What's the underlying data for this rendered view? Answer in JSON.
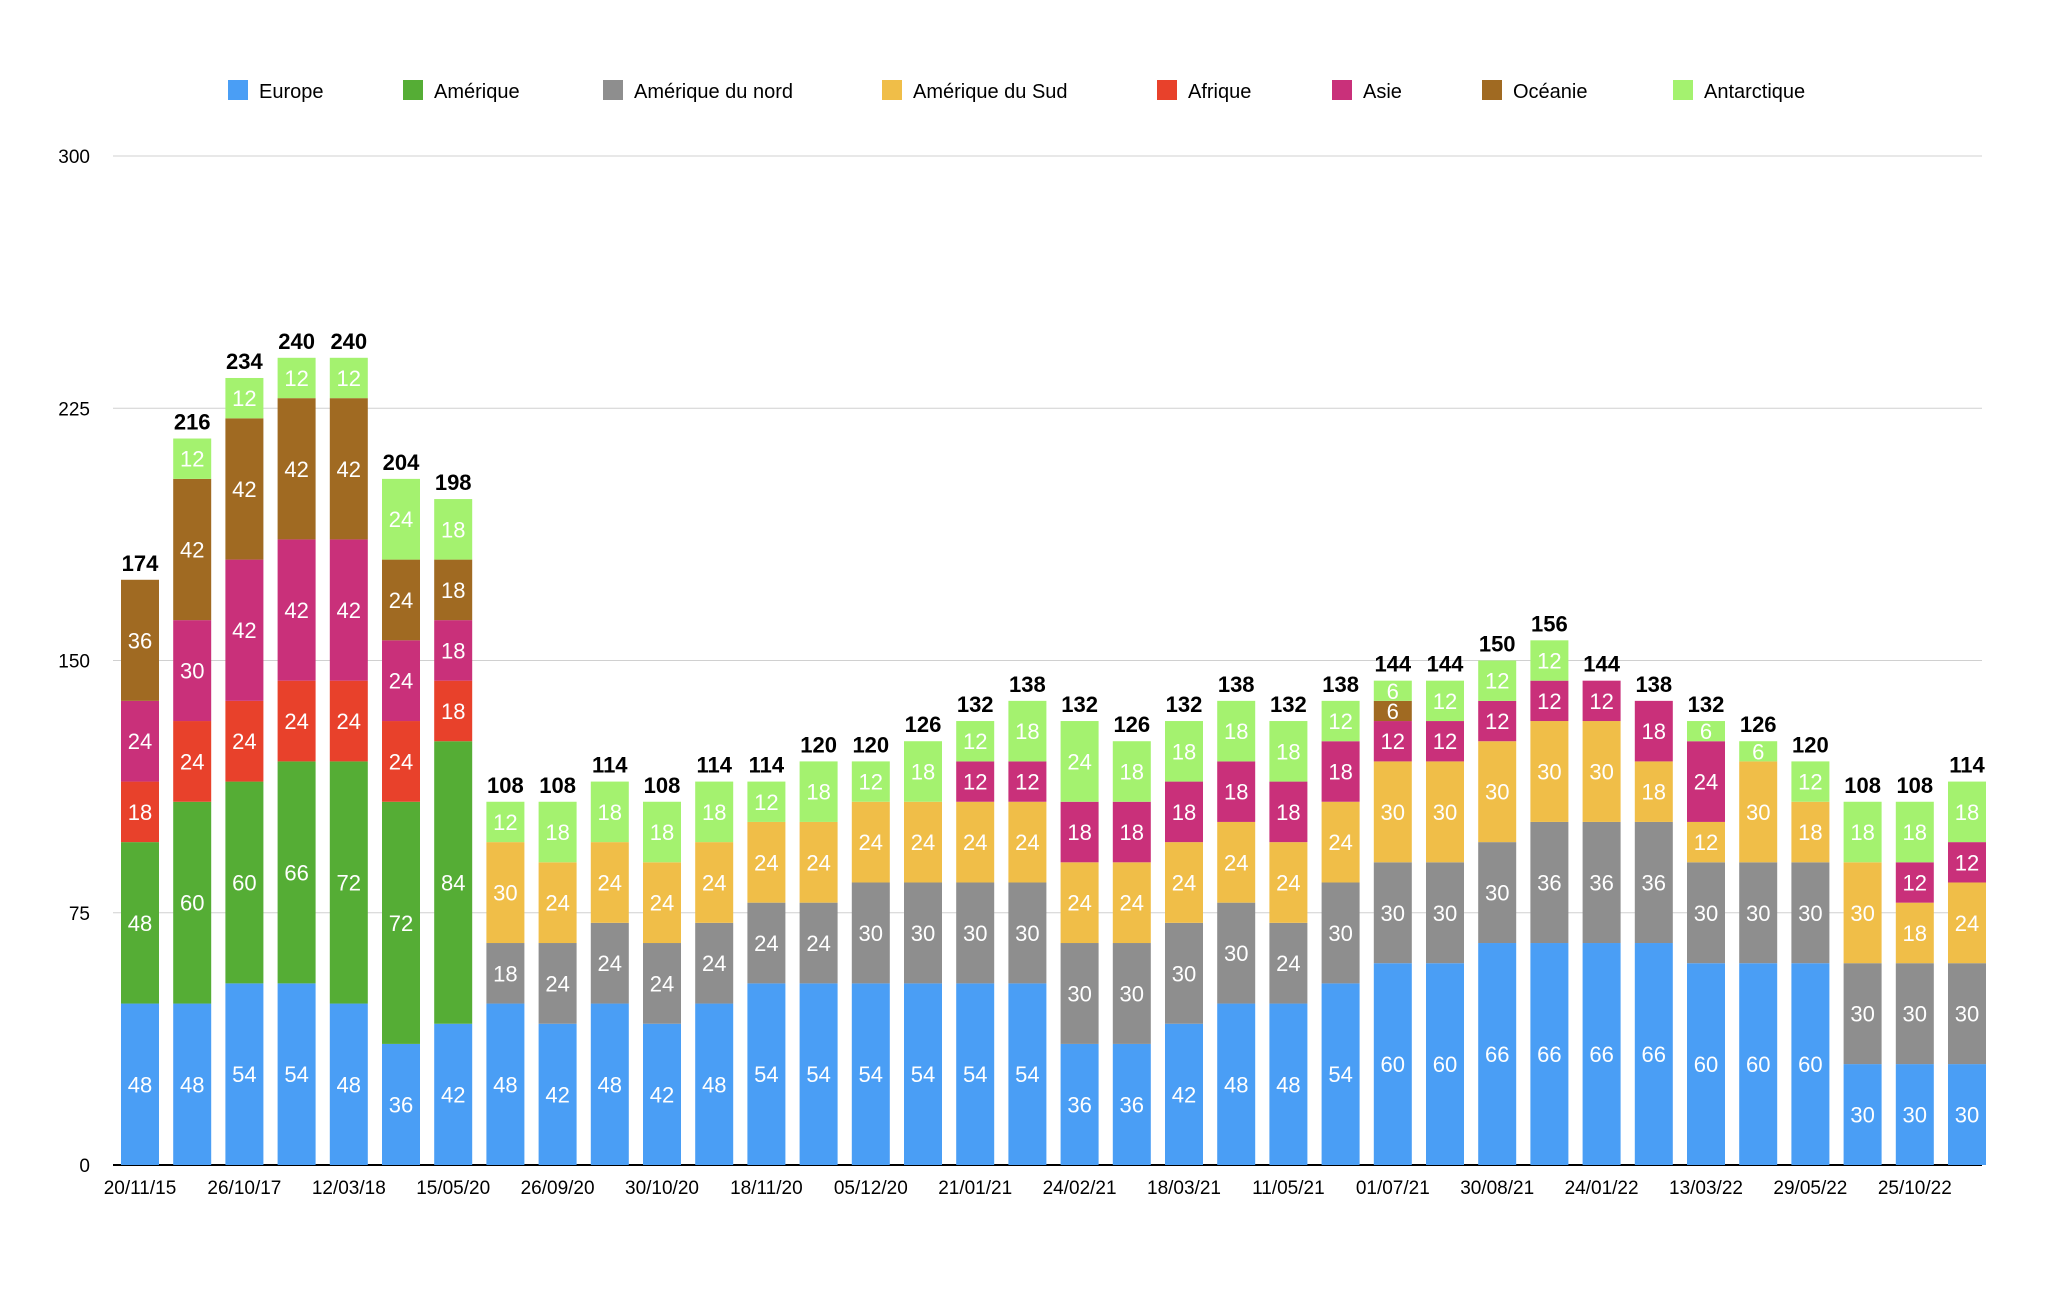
{
  "chart_data": {
    "type": "bar",
    "stacked": true,
    "grid": true,
    "legend_position": "top",
    "ylim": [
      0,
      300
    ],
    "yticks": [
      0,
      75,
      150,
      225,
      300
    ],
    "categories": [
      "20/11/15",
      "",
      "26/10/17",
      "",
      "12/03/18",
      "",
      "15/05/20",
      "",
      "26/09/20",
      "",
      "30/10/20",
      "",
      "18/11/20",
      "",
      "05/12/20",
      "",
      "21/01/21",
      "",
      "24/02/21",
      "",
      "18/03/21",
      "",
      "11/05/21",
      "",
      "01/07/21",
      "",
      "30/08/21",
      "",
      "24/01/22",
      "",
      "13/03/22",
      "",
      "29/05/22",
      "",
      "25/10/22",
      ""
    ],
    "series": [
      {
        "name": "Europe",
        "color": "#4A9EF5",
        "values": [
          48,
          48,
          54,
          54,
          48,
          36,
          42,
          48,
          42,
          48,
          42,
          48,
          54,
          54,
          54,
          54,
          54,
          54,
          36,
          36,
          42,
          48,
          48,
          54,
          60,
          60,
          66,
          66,
          66,
          66,
          60,
          60,
          60,
          30,
          30,
          30
        ]
      },
      {
        "name": "Amérique",
        "color": "#55AD35",
        "values": [
          48,
          60,
          60,
          66,
          72,
          72,
          84,
          0,
          0,
          0,
          0,
          0,
          0,
          0,
          0,
          0,
          0,
          0,
          0,
          0,
          0,
          0,
          0,
          0,
          0,
          0,
          0,
          0,
          0,
          0,
          0,
          0,
          0,
          0,
          0,
          0
        ]
      },
      {
        "name": "Amérique du nord",
        "color": "#8E8E8E",
        "values": [
          0,
          0,
          0,
          0,
          0,
          0,
          0,
          18,
          24,
          24,
          24,
          24,
          24,
          24,
          30,
          30,
          30,
          30,
          30,
          30,
          30,
          30,
          24,
          30,
          30,
          30,
          30,
          36,
          36,
          36,
          30,
          30,
          30,
          30,
          30,
          30
        ]
      },
      {
        "name": "Amérique du Sud",
        "color": "#F0BE48",
        "values": [
          0,
          0,
          0,
          0,
          0,
          0,
          0,
          30,
          24,
          24,
          24,
          24,
          24,
          24,
          24,
          24,
          24,
          24,
          24,
          24,
          24,
          24,
          24,
          24,
          30,
          30,
          30,
          30,
          30,
          18,
          12,
          30,
          18,
          30,
          18,
          24
        ]
      },
      {
        "name": "Afrique",
        "color": "#E8412B",
        "values": [
          18,
          24,
          24,
          24,
          24,
          24,
          18,
          0,
          0,
          0,
          0,
          0,
          0,
          0,
          0,
          0,
          0,
          0,
          0,
          0,
          0,
          0,
          0,
          0,
          0,
          0,
          0,
          0,
          0,
          0,
          0,
          0,
          0,
          0,
          0,
          0
        ]
      },
      {
        "name": "Asie",
        "color": "#C9307A",
        "values": [
          24,
          30,
          42,
          42,
          42,
          24,
          18,
          0,
          0,
          0,
          0,
          0,
          0,
          0,
          0,
          0,
          12,
          12,
          18,
          18,
          18,
          18,
          18,
          18,
          12,
          12,
          12,
          12,
          12,
          18,
          24,
          0,
          0,
          0,
          12,
          12
        ]
      },
      {
        "name": "Océanie",
        "color": "#A06A22",
        "values": [
          36,
          42,
          42,
          42,
          42,
          24,
          18,
          0,
          0,
          0,
          0,
          0,
          0,
          0,
          0,
          0,
          0,
          0,
          0,
          0,
          0,
          0,
          0,
          0,
          6,
          0,
          0,
          0,
          0,
          0,
          0,
          0,
          0,
          0,
          0,
          0
        ]
      },
      {
        "name": "Antarctique",
        "color": "#A4F26F",
        "values": [
          0,
          12,
          12,
          12,
          12,
          24,
          18,
          12,
          18,
          18,
          18,
          18,
          12,
          18,
          12,
          18,
          12,
          18,
          24,
          18,
          18,
          18,
          18,
          12,
          6,
          12,
          12,
          12,
          0,
          0,
          6,
          6,
          12,
          18,
          18,
          18
        ]
      }
    ],
    "totals": [
      174,
      216,
      234,
      240,
      240,
      204,
      198,
      108,
      108,
      114,
      108,
      114,
      114,
      120,
      120,
      126,
      132,
      138,
      132,
      126,
      132,
      138,
      132,
      138,
      144,
      144,
      150,
      156,
      144,
      138,
      132,
      126,
      120,
      108,
      108,
      114
    ]
  }
}
